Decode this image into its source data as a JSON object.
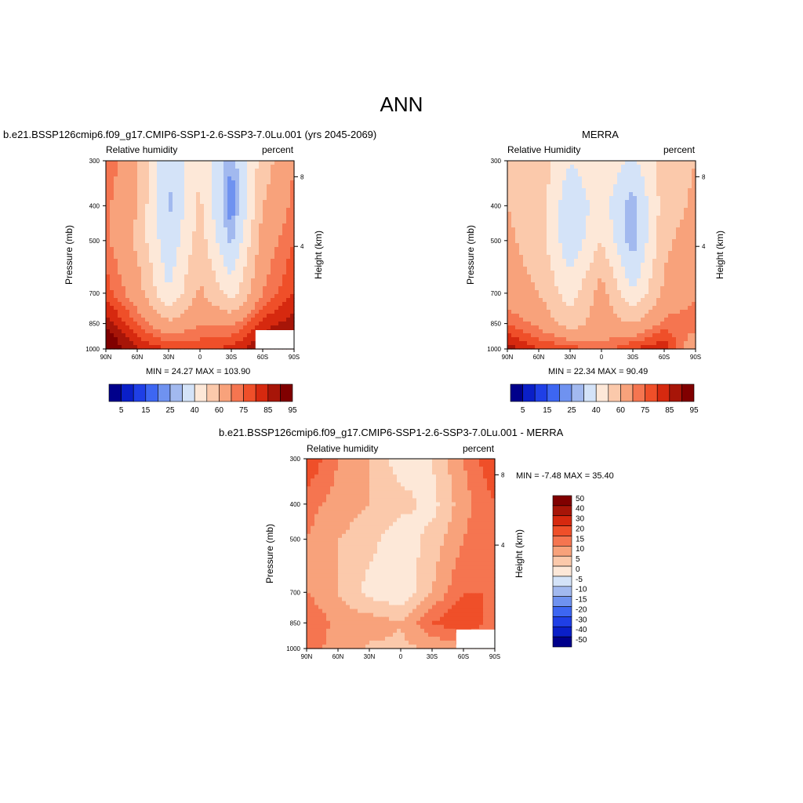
{
  "main_title": "ANN",
  "colors": {
    "abs_scale": [
      "#00008b",
      "#0a1fc8",
      "#1f3fe6",
      "#3d66f2",
      "#6f92f0",
      "#a2b9ef",
      "#d4e3f8",
      "#fde8d8",
      "#fbc9ab",
      "#f8a27b",
      "#f57550",
      "#ef4f29",
      "#d6290f",
      "#a71508",
      "#800000"
    ],
    "diff_scale": [
      "#00008b",
      "#0a1fc8",
      "#1f3fe6",
      "#3d66f2",
      "#6f92f0",
      "#a2b9ef",
      "#d4e3f8",
      "#fde8d8",
      "#fbc9ab",
      "#f8a27b",
      "#f57550",
      "#ef4f29",
      "#d6290f",
      "#a71508",
      "#800000"
    ]
  },
  "panels": [
    {
      "id": "model",
      "header": "b.e21.BSSP126cmip6.f09_g17.CMIP6-SSP1-2.6-SSP3-7.0Lu.001 (yrs 2045-2069)",
      "left_label": "Relative humidity",
      "right_label": "percent",
      "y_axis_label": "Pressure (mb)",
      "y2_axis_label": "Height (km)",
      "y_ticks": [
        "300",
        "400",
        "500",
        "700",
        "850",
        "1000"
      ],
      "y2_ticks": [
        "8",
        "4"
      ],
      "x_ticks": [
        "90N",
        "60N",
        "30N",
        "0",
        "30S",
        "60S",
        "90S"
      ],
      "stats": "MIN =  24.27  MAX = 103.90",
      "colorbar_labels": [
        "5",
        "15",
        "25",
        "40",
        "60",
        "75",
        "85",
        "95"
      ]
    },
    {
      "id": "obs",
      "header": "MERRA",
      "left_label": "Relative Humidity",
      "right_label": "percent",
      "y_axis_label": "Pressure (mb)",
      "y2_axis_label": "Height (km)",
      "y_ticks": [
        "300",
        "400",
        "500",
        "700",
        "850",
        "1000"
      ],
      "y2_ticks": [
        "8",
        "4"
      ],
      "x_ticks": [
        "90N",
        "60N",
        "30N",
        "0",
        "30S",
        "60S",
        "90S"
      ],
      "stats": "MIN =  22.34  MAX =  90.49",
      "colorbar_labels": [
        "5",
        "15",
        "25",
        "40",
        "60",
        "75",
        "85",
        "95"
      ]
    },
    {
      "id": "diff",
      "header": "b.e21.BSSP126cmip6.f09_g17.CMIP6-SSP1-2.6-SSP3-7.0Lu.001 - MERRA",
      "left_label": "Relative humidity",
      "right_label": "percent",
      "y_axis_label": "Pressure (mb)",
      "y2_axis_label": "Height (km)",
      "y_ticks": [
        "300",
        "400",
        "500",
        "700",
        "850",
        "1000"
      ],
      "y2_ticks": [
        "8",
        "4"
      ],
      "x_ticks": [
        "90N",
        "60N",
        "30N",
        "0",
        "30S",
        "60S",
        "90S"
      ],
      "stats": "MIN =  -7.48  MAX =  35.40",
      "colorbar_labels": [
        "50",
        "40",
        "30",
        "20",
        "15",
        "10",
        "5",
        "0",
        "-5",
        "-10",
        "-15",
        "-20",
        "-30",
        "-40",
        "-50"
      ]
    }
  ],
  "chart_data": [
    {
      "type": "heatmap",
      "title": "b.e21.BSSP126cmip6.f09_g17.CMIP6-SSP1-2.6-SSP3-7.0Lu.001 (yrs 2045-2069)",
      "xlabel": "",
      "ylabel": "Pressure (mb)",
      "x": [
        "90N",
        "60N",
        "30N",
        "0",
        "30S",
        "60S",
        "90S"
      ],
      "y": [
        300,
        400,
        500,
        700,
        850,
        1000
      ],
      "y_scale": "log",
      "y_reversed": true,
      "levels": [
        5,
        10,
        15,
        20,
        25,
        30,
        40,
        50,
        60,
        70,
        75,
        80,
        85,
        90,
        95
      ],
      "values": [
        [
          75,
          62,
          30,
          50,
          25,
          55,
          70
        ],
        [
          72,
          60,
          28,
          52,
          20,
          60,
          72
        ],
        [
          72,
          58,
          32,
          55,
          28,
          65,
          75
        ],
        [
          78,
          65,
          40,
          62,
          45,
          70,
          80
        ],
        [
          88,
          75,
          62,
          70,
          68,
          82,
          88
        ],
        [
          98,
          85,
          80,
          78,
          82,
          90,
          95
        ]
      ],
      "min": 24.27,
      "max": 103.9
    },
    {
      "type": "heatmap",
      "title": "MERRA",
      "xlabel": "",
      "ylabel": "Pressure (mb)",
      "x": [
        "90N",
        "60N",
        "30N",
        "0",
        "30S",
        "60S",
        "90S"
      ],
      "y": [
        300,
        400,
        500,
        700,
        850,
        1000
      ],
      "y_scale": "log",
      "y_reversed": true,
      "levels": [
        5,
        10,
        15,
        20,
        25,
        30,
        40,
        50,
        60,
        70,
        75,
        80,
        85,
        90,
        95
      ],
      "values": [
        [
          60,
          58,
          40,
          48,
          38,
          55,
          60
        ],
        [
          60,
          55,
          32,
          45,
          25,
          55,
          62
        ],
        [
          62,
          55,
          32,
          50,
          25,
          58,
          65
        ],
        [
          65,
          60,
          45,
          65,
          40,
          62,
          68
        ],
        [
          75,
          68,
          55,
          65,
          60,
          72,
          75
        ],
        [
          88,
          80,
          78,
          72,
          80,
          85,
          60
        ]
      ],
      "min": 22.34,
      "max": 90.49
    },
    {
      "type": "heatmap",
      "title": "b.e21.BSSP126cmip6.f09_g17.CMIP6-SSP1-2.6-SSP3-7.0Lu.001 - MERRA",
      "xlabel": "",
      "ylabel": "Pressure (mb)",
      "x": [
        "90N",
        "60N",
        "30N",
        "0",
        "30S",
        "60S",
        "90S"
      ],
      "y": [
        300,
        400,
        500,
        700,
        850,
        1000
      ],
      "y_scale": "log",
      "y_reversed": true,
      "levels": [
        -50,
        -40,
        -30,
        -20,
        -15,
        -10,
        -5,
        0,
        5,
        10,
        15,
        20,
        30,
        40,
        50
      ],
      "values": [
        [
          20,
          10,
          5,
          -3,
          0,
          10,
          20
        ],
        [
          12,
          8,
          5,
          2,
          -2,
          8,
          15
        ],
        [
          10,
          5,
          2,
          -4,
          2,
          10,
          15
        ],
        [
          10,
          5,
          -2,
          -4,
          5,
          15,
          15
        ],
        [
          15,
          8,
          8,
          5,
          15,
          20,
          12
        ],
        [
          12,
          8,
          4,
          4,
          5,
          8,
          5
        ]
      ],
      "min": -7.48,
      "max": 35.4
    }
  ]
}
